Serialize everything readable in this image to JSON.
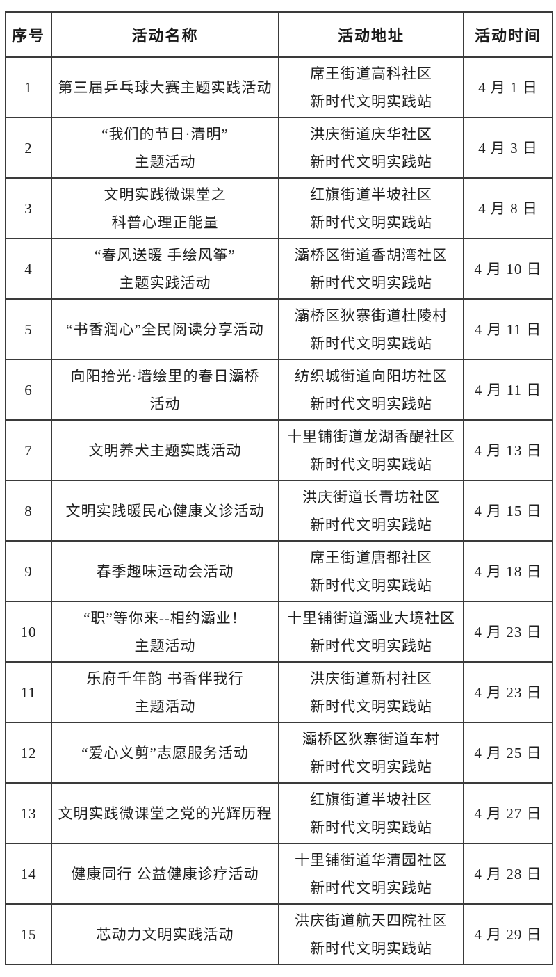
{
  "table": {
    "headers": [
      "序号",
      "活动名称",
      "活动地址",
      "活动时间"
    ],
    "rows": [
      {
        "no": "1",
        "name": [
          "第三届乒乓球大赛主题实践活动"
        ],
        "addr": [
          "席王街道高科社区",
          "新时代文明实践站"
        ],
        "date": "4 月 1 日"
      },
      {
        "no": "2",
        "name": [
          "“我们的节日·清明”",
          "主题活动"
        ],
        "addr": [
          "洪庆街道庆华社区",
          "新时代文明实践站"
        ],
        "date": "4 月 3 日"
      },
      {
        "no": "3",
        "name": [
          "文明实践微课堂之",
          "科普心理正能量"
        ],
        "addr": [
          "红旗街道半坡社区",
          "新时代文明实践站"
        ],
        "date": "4 月 8 日"
      },
      {
        "no": "4",
        "name": [
          "“春风送暖 手绘风筝”",
          "主题实践活动"
        ],
        "addr": [
          "灞桥区街道香胡湾社区",
          "新时代文明实践站"
        ],
        "date": "4 月 10 日"
      },
      {
        "no": "5",
        "name": [
          "“书香润心”全民阅读分享活动"
        ],
        "addr": [
          "灞桥区狄寨街道杜陵村",
          "新时代文明实践站"
        ],
        "date": "4 月 11 日"
      },
      {
        "no": "6",
        "name": [
          "向阳拾光·墙绘里的春日灞桥",
          "活动"
        ],
        "addr": [
          "纺织城街道向阳坊社区",
          "新时代文明实践站"
        ],
        "date": "4 月 11 日"
      },
      {
        "no": "7",
        "name": [
          "文明养犬主题实践活动"
        ],
        "addr": [
          "十里铺街道龙湖香醍社区",
          "新时代文明实践站"
        ],
        "date": "4 月 13 日"
      },
      {
        "no": "8",
        "name": [
          "文明实践暖民心健康义诊活动"
        ],
        "addr": [
          "洪庆街道长青坊社区",
          "新时代文明实践站"
        ],
        "date": "4 月 15 日"
      },
      {
        "no": "9",
        "name": [
          "春季趣味运动会活动"
        ],
        "addr": [
          "席王街道唐都社区",
          "新时代文明实践站"
        ],
        "date": "4 月 18 日"
      },
      {
        "no": "10",
        "name": [
          "“职”等你来--相约灞业！",
          "主题活动"
        ],
        "addr": [
          "十里铺街道灞业大境社区",
          "新时代文明实践站"
        ],
        "date": "4 月 23 日"
      },
      {
        "no": "11",
        "name": [
          "乐府千年韵 书香伴我行",
          "主题活动"
        ],
        "addr": [
          "洪庆街道新村社区",
          "新时代文明实践站"
        ],
        "date": "4 月 23 日"
      },
      {
        "no": "12",
        "name": [
          "“爱心义剪”志愿服务活动"
        ],
        "addr": [
          "灞桥区狄寨街道车村",
          "新时代文明实践站"
        ],
        "date": "4 月 25 日"
      },
      {
        "no": "13",
        "name": [
          "文明实践微课堂之党的光辉历程"
        ],
        "addr": [
          "红旗街道半坡社区",
          "新时代文明实践站"
        ],
        "date": "4 月 27 日"
      },
      {
        "no": "14",
        "name": [
          "健康同行 公益健康诊疗活动"
        ],
        "addr": [
          "十里铺街道华清园社区",
          "新时代文明实践站"
        ],
        "date": "4 月 28 日"
      },
      {
        "no": "15",
        "name": [
          "芯动力文明实践活动"
        ],
        "addr": [
          "洪庆街道航天四院社区",
          "新时代文明实践站"
        ],
        "date": "4 月 29 日"
      }
    ]
  }
}
